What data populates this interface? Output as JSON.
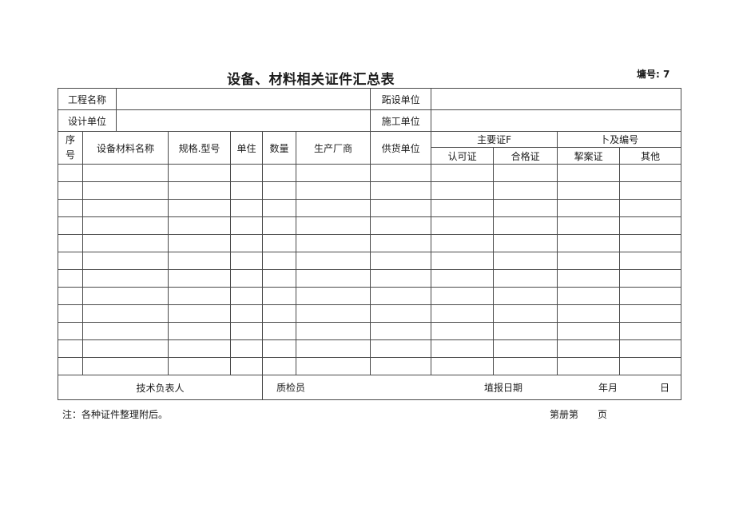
{
  "page": {
    "title": "设备、材料相关证件汇总表",
    "doc_number": "墉号: 7",
    "note": "注：各种证件整理附后。",
    "page_footer_left": "第册第",
    "page_footer_right": "页"
  },
  "info": {
    "project_name_label": "工程名称",
    "construction_unit_label": "跖设单位",
    "design_unit_label": "设计单位",
    "builder_unit_label": "施工单位"
  },
  "table": {
    "headers": {
      "seq_char1": "序",
      "seq_char2": "号",
      "material_name": "设备材料名称",
      "spec_model": "规格.型号",
      "unit": "单住",
      "quantity": "数量",
      "manufacturer": "生产厂商",
      "supplier": "供货单位",
      "cert_group_main": "主要证F",
      "cert_group_number": "卜及编号",
      "cert_approval": "认可证",
      "cert_qualified": "合格证",
      "cert_record": "挈案证",
      "cert_other": "其他"
    },
    "empty_row_count": 12
  },
  "signature": {
    "tech_person_label": "技术负表人",
    "qc_inspector_label": "质检员",
    "report_date_label": "埴报日期",
    "year_month_label": "年月",
    "day_label": "日"
  }
}
